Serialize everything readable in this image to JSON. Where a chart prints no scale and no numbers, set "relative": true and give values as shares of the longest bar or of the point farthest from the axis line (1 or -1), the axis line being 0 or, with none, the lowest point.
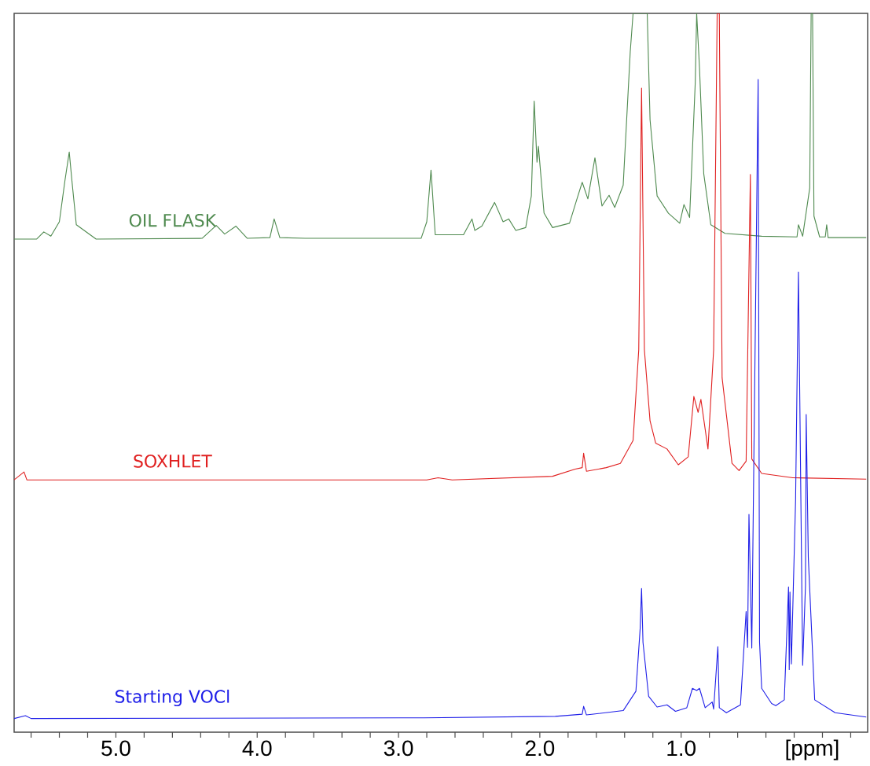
{
  "chart_data": {
    "type": "line",
    "relative": true,
    "xlabel": "[ppm]",
    "xlim": [
      5.72,
      -0.32
    ],
    "xticks": [
      {
        "value": 5.6,
        "label": null
      },
      {
        "value": 5.4,
        "label": null
      },
      {
        "value": 5.2,
        "label": null
      },
      {
        "value": 5,
        "label": "5.0"
      },
      {
        "value": 4.8,
        "label": null
      },
      {
        "value": 4.6,
        "label": null
      },
      {
        "value": 4.4,
        "label": null
      },
      {
        "value": 4.2,
        "label": null
      },
      {
        "value": 4,
        "label": "4.0"
      },
      {
        "value": 3.8,
        "label": null
      },
      {
        "value": 3.6,
        "label": null
      },
      {
        "value": 3.4,
        "label": null
      },
      {
        "value": 3.2,
        "label": null
      },
      {
        "value": 3,
        "label": "3.0"
      },
      {
        "value": 2.8,
        "label": null
      },
      {
        "value": 2.6,
        "label": null
      },
      {
        "value": 2.4,
        "label": null
      },
      {
        "value": 2.2,
        "label": null
      },
      {
        "value": 2,
        "label": "2.0"
      },
      {
        "value": 1.8,
        "label": null
      },
      {
        "value": 1.6,
        "label": null
      },
      {
        "value": 1.4,
        "label": null
      },
      {
        "value": 1.2,
        "label": null
      },
      {
        "value": 1,
        "label": "1.0"
      },
      {
        "value": 0.8,
        "label": null
      },
      {
        "value": 0.6,
        "label": null
      },
      {
        "value": 0.4,
        "label": null
      },
      {
        "value": 0.2,
        "label": null
      },
      {
        "value": 0,
        "label": null
      },
      {
        "value": -0.2,
        "label": null
      }
    ],
    "series": [
      {
        "name": "OIL FLASK",
        "color": "#4f8a4f",
        "x": [
          5.72,
          5.56,
          5.51,
          5.46,
          5.4,
          5.36,
          5.33,
          5.31,
          5.28,
          5.14,
          4.39,
          4.29,
          4.23,
          4.15,
          4.07,
          3.91,
          3.88,
          3.84,
          3.66,
          2.84,
          2.8,
          2.77,
          2.74,
          2.54,
          2.48,
          2.46,
          2.41,
          2.32,
          2.26,
          2.22,
          2.17,
          2.1,
          2.06,
          2.04,
          2.02,
          2.01,
          1.97,
          1.91,
          1.79,
          1.74,
          1.7,
          1.66,
          1.61,
          1.56,
          1.51,
          1.47,
          1.41,
          1.36,
          1.34,
          1.24,
          1.22,
          1.17,
          1.09,
          1.01,
          0.98,
          0.94,
          0.9,
          0.89,
          0.87,
          0.84,
          0.79,
          0.69,
          0.43,
          0.18,
          0.17,
          0.14,
          0.09,
          0.08,
          0.07,
          0.06,
          0.02,
          -0.02,
          -0.03,
          -0.04,
          -0.31
        ],
        "values": [
          0.686,
          0.686,
          0.696,
          0.69,
          0.71,
          0.768,
          0.807,
          0.765,
          0.706,
          0.686,
          0.687,
          0.705,
          0.693,
          0.704,
          0.687,
          0.688,
          0.714,
          0.688,
          0.687,
          0.687,
          0.71,
          0.782,
          0.692,
          0.692,
          0.714,
          0.698,
          0.704,
          0.737,
          0.71,
          0.714,
          0.698,
          0.702,
          0.746,
          0.878,
          0.793,
          0.815,
          0.722,
          0.702,
          0.708,
          0.74,
          0.765,
          0.742,
          0.799,
          0.732,
          0.747,
          0.73,
          0.761,
          0.947,
          1.0,
          1.0,
          0.852,
          0.746,
          0.722,
          0.708,
          0.734,
          0.716,
          0.904,
          1.0,
          0.924,
          0.777,
          0.706,
          0.694,
          0.69,
          0.689,
          0.706,
          0.69,
          0.757,
          1.0,
          1.0,
          0.718,
          0.689,
          0.689,
          0.706,
          0.688,
          0.688
        ]
      },
      {
        "name": "SOXHLET",
        "color": "#e02020",
        "x": [
          5.72,
          5.65,
          5.63,
          2.8,
          2.72,
          2.62,
          1.91,
          1.75,
          1.7,
          1.69,
          1.67,
          1.53,
          1.43,
          1.34,
          1.3,
          1.28,
          1.26,
          1.22,
          1.18,
          1.1,
          1.02,
          0.95,
          0.91,
          0.88,
          0.86,
          0.81,
          0.77,
          0.745,
          0.73,
          0.71,
          0.64,
          0.59,
          0.54,
          0.51,
          0.5,
          0.43,
          0.21,
          -0.31
        ],
        "values": [
          0.351,
          0.362,
          0.351,
          0.351,
          0.354,
          0.351,
          0.356,
          0.366,
          0.368,
          0.388,
          0.363,
          0.368,
          0.374,
          0.406,
          0.532,
          0.896,
          0.532,
          0.433,
          0.402,
          0.394,
          0.372,
          0.383,
          0.467,
          0.445,
          0.463,
          0.394,
          0.532,
          1.0,
          1.0,
          0.493,
          0.374,
          0.364,
          0.377,
          0.776,
          0.38,
          0.36,
          0.354,
          0.352
        ]
      },
      {
        "name": "Starting VOCl",
        "color": "#1f1fe8",
        "x": [
          5.72,
          5.64,
          5.6,
          2.82,
          1.89,
          1.7,
          1.69,
          1.67,
          1.41,
          1.32,
          1.29,
          1.28,
          1.27,
          1.23,
          1.17,
          1.1,
          1.04,
          0.96,
          0.92,
          0.89,
          0.87,
          0.83,
          0.78,
          0.77,
          0.74,
          0.73,
          0.68,
          0.58,
          0.54,
          0.53,
          0.52,
          0.5,
          0.49,
          0.455,
          0.445,
          0.43,
          0.36,
          0.33,
          0.27,
          0.24,
          0.235,
          0.23,
          0.22,
          0.19,
          0.17,
          0.14,
          0.12,
          0.115,
          0.1,
          0.055,
          -0.09,
          -0.31
        ],
        "values": [
          0.019,
          0.023,
          0.019,
          0.02,
          0.022,
          0.025,
          0.036,
          0.024,
          0.03,
          0.057,
          0.144,
          0.2,
          0.125,
          0.05,
          0.035,
          0.038,
          0.029,
          0.034,
          0.061,
          0.058,
          0.061,
          0.034,
          0.042,
          0.032,
          0.119,
          0.034,
          0.027,
          0.038,
          0.168,
          0.118,
          0.303,
          0.117,
          0.3,
          0.908,
          0.125,
          0.061,
          0.04,
          0.037,
          0.045,
          0.202,
          0.087,
          0.195,
          0.095,
          0.323,
          0.64,
          0.093,
          0.204,
          0.442,
          0.243,
          0.045,
          0.027,
          0.021
        ]
      }
    ]
  }
}
